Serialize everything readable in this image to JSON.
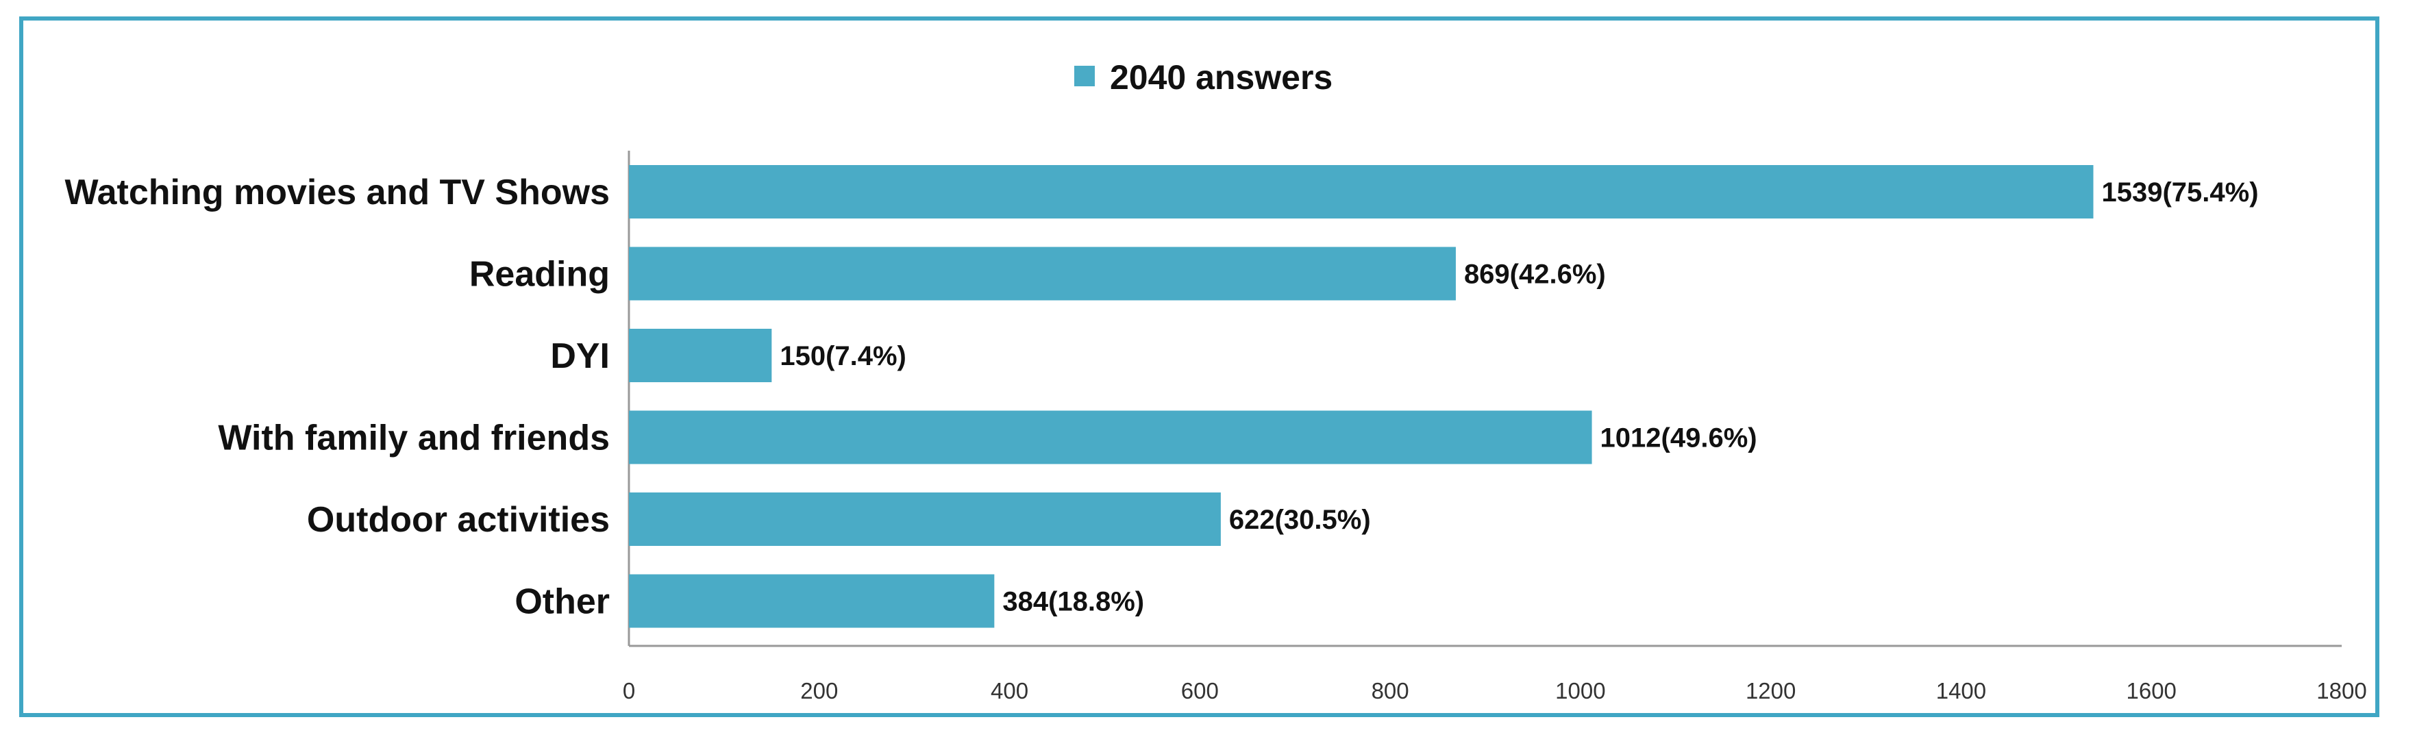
{
  "chart_data": {
    "type": "bar",
    "orientation": "horizontal",
    "categories": [
      "Watching movies and TV Shows",
      "Reading",
      "DYI",
      "With family and friends",
      "Outdoor activities",
      "Other"
    ],
    "series": [
      {
        "name": "2040 answers",
        "values": [
          1539,
          869,
          150,
          1012,
          622,
          384
        ],
        "labels": [
          "1539(75.4%)",
          "869(42.6%)",
          "150(7.4%)",
          "1012(49.6%)",
          "622(30.5%)",
          "384(18.8%)"
        ],
        "color": "#4AABC6"
      }
    ],
    "xlim": [
      0,
      1800
    ],
    "ticks": [
      0,
      200,
      400,
      600,
      800,
      1000,
      1200,
      1400,
      1600,
      1800
    ],
    "grid": false,
    "legend": "top-center",
    "title": "",
    "xlabel": "",
    "ylabel": ""
  },
  "colors": {
    "frame": "#40A6C4",
    "bar": "#4AABC6",
    "axis": "#999999"
  }
}
